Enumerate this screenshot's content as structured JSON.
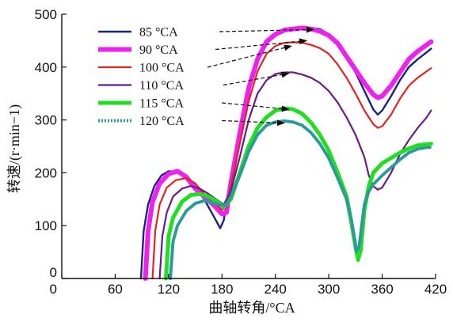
{
  "chart_data": {
    "type": "line",
    "xlabel": "曲轴转角/°CA",
    "ylabel": "转速/(r·min−1)",
    "xlim": [
      0,
      420
    ],
    "ylim": [
      0,
      500
    ],
    "xticks": [
      0,
      60,
      120,
      180,
      240,
      300,
      360,
      420
    ],
    "yticks": [
      0,
      100,
      200,
      300,
      400,
      500
    ],
    "grid": false,
    "legend_position": "top-left",
    "series": [
      {
        "name": "85 °CA",
        "color": "#1a237e",
        "x": [
          89,
          92,
          97,
          104,
          112,
          120,
          130,
          140,
          150,
          160,
          170,
          178,
          182,
          190,
          200,
          210,
          220,
          230,
          240,
          250,
          260,
          270,
          280,
          290,
          300,
          310,
          320,
          330,
          340,
          350,
          355,
          360,
          370,
          380,
          390,
          400,
          410,
          415
        ],
        "y": [
          0,
          90,
          140,
          175,
          195,
          203,
          202,
          190,
          172,
          150,
          120,
          95,
          110,
          195,
          285,
          365,
          420,
          450,
          462,
          468,
          472,
          474,
          474,
          472,
          462,
          445,
          420,
          390,
          355,
          320,
          310,
          318,
          345,
          375,
          400,
          415,
          428,
          435
        ]
      },
      {
        "name": "90 °CA",
        "color": "#ee22ee",
        "x": [
          94,
          97,
          102,
          110,
          120,
          130,
          140,
          150,
          160,
          170,
          180,
          185,
          190,
          200,
          210,
          220,
          230,
          240,
          250,
          260,
          270,
          280,
          290,
          300,
          310,
          320,
          330,
          340,
          350,
          355,
          360,
          370,
          380,
          390,
          400,
          410,
          415
        ],
        "y": [
          0,
          90,
          145,
          180,
          198,
          203,
          192,
          170,
          155,
          140,
          122,
          125,
          180,
          275,
          360,
          415,
          448,
          462,
          470,
          472,
          474,
          472,
          468,
          460,
          445,
          420,
          395,
          370,
          348,
          342,
          345,
          365,
          390,
          415,
          430,
          442,
          448
        ]
      },
      {
        "name": "100 °CA",
        "color": "#e52222",
        "x": [
          102,
          105,
          110,
          118,
          128,
          140,
          150,
          160,
          170,
          180,
          185,
          190,
          200,
          210,
          220,
          230,
          240,
          250,
          260,
          270,
          280,
          290,
          300,
          310,
          320,
          330,
          340,
          350,
          355,
          360,
          370,
          380,
          390,
          400,
          410,
          415
        ],
        "y": [
          0,
          90,
          140,
          172,
          186,
          190,
          180,
          160,
          145,
          130,
          135,
          175,
          255,
          335,
          392,
          425,
          440,
          446,
          447,
          446,
          442,
          436,
          425,
          405,
          380,
          350,
          318,
          292,
          285,
          288,
          310,
          340,
          365,
          380,
          392,
          398
        ]
      },
      {
        "name": "110 °CA",
        "color": "#6a1a8a",
        "x": [
          110,
          113,
          118,
          125,
          135,
          145,
          155,
          165,
          175,
          182,
          190,
          200,
          210,
          220,
          230,
          240,
          250,
          260,
          270,
          280,
          290,
          300,
          310,
          320,
          330,
          340,
          345,
          350,
          355,
          360,
          370,
          380,
          390,
          400,
          410,
          415
        ],
        "y": [
          0,
          80,
          125,
          155,
          170,
          175,
          170,
          160,
          148,
          140,
          165,
          230,
          300,
          350,
          375,
          387,
          390,
          390,
          386,
          380,
          370,
          355,
          333,
          305,
          272,
          230,
          195,
          175,
          168,
          172,
          200,
          235,
          262,
          285,
          305,
          318
        ]
      },
      {
        "name": "115 °CA",
        "color": "#22dd22",
        "x": [
          117,
          120,
          125,
          135,
          145,
          155,
          165,
          175,
          182,
          190,
          200,
          210,
          220,
          230,
          240,
          250,
          260,
          270,
          280,
          290,
          300,
          310,
          320,
          325,
          330,
          333,
          336,
          340,
          345,
          350,
          360,
          370,
          380,
          390,
          400,
          410,
          415
        ],
        "y": [
          0,
          80,
          115,
          145,
          158,
          160,
          155,
          145,
          135,
          150,
          200,
          250,
          285,
          305,
          318,
          322,
          320,
          312,
          295,
          272,
          242,
          200,
          155,
          110,
          60,
          35,
          55,
          130,
          175,
          200,
          218,
          228,
          238,
          246,
          252,
          254,
          255
        ]
      },
      {
        "name": "120 °CA",
        "color": "#2a9a9a",
        "x": [
          122,
          125,
          130,
          140,
          150,
          160,
          170,
          180,
          185,
          190,
          200,
          210,
          220,
          230,
          240,
          250,
          260,
          270,
          280,
          290,
          300,
          310,
          320,
          325,
          328,
          331,
          334,
          337,
          340,
          345,
          350,
          360,
          370,
          380,
          390,
          400,
          410,
          415
        ],
        "y": [
          0,
          70,
          100,
          128,
          142,
          147,
          143,
          138,
          140,
          155,
          195,
          240,
          272,
          290,
          296,
          298,
          296,
          290,
          276,
          255,
          228,
          190,
          150,
          115,
          85,
          52,
          60,
          100,
          140,
          165,
          178,
          195,
          210,
          225,
          238,
          245,
          248,
          248
        ]
      }
    ]
  }
}
